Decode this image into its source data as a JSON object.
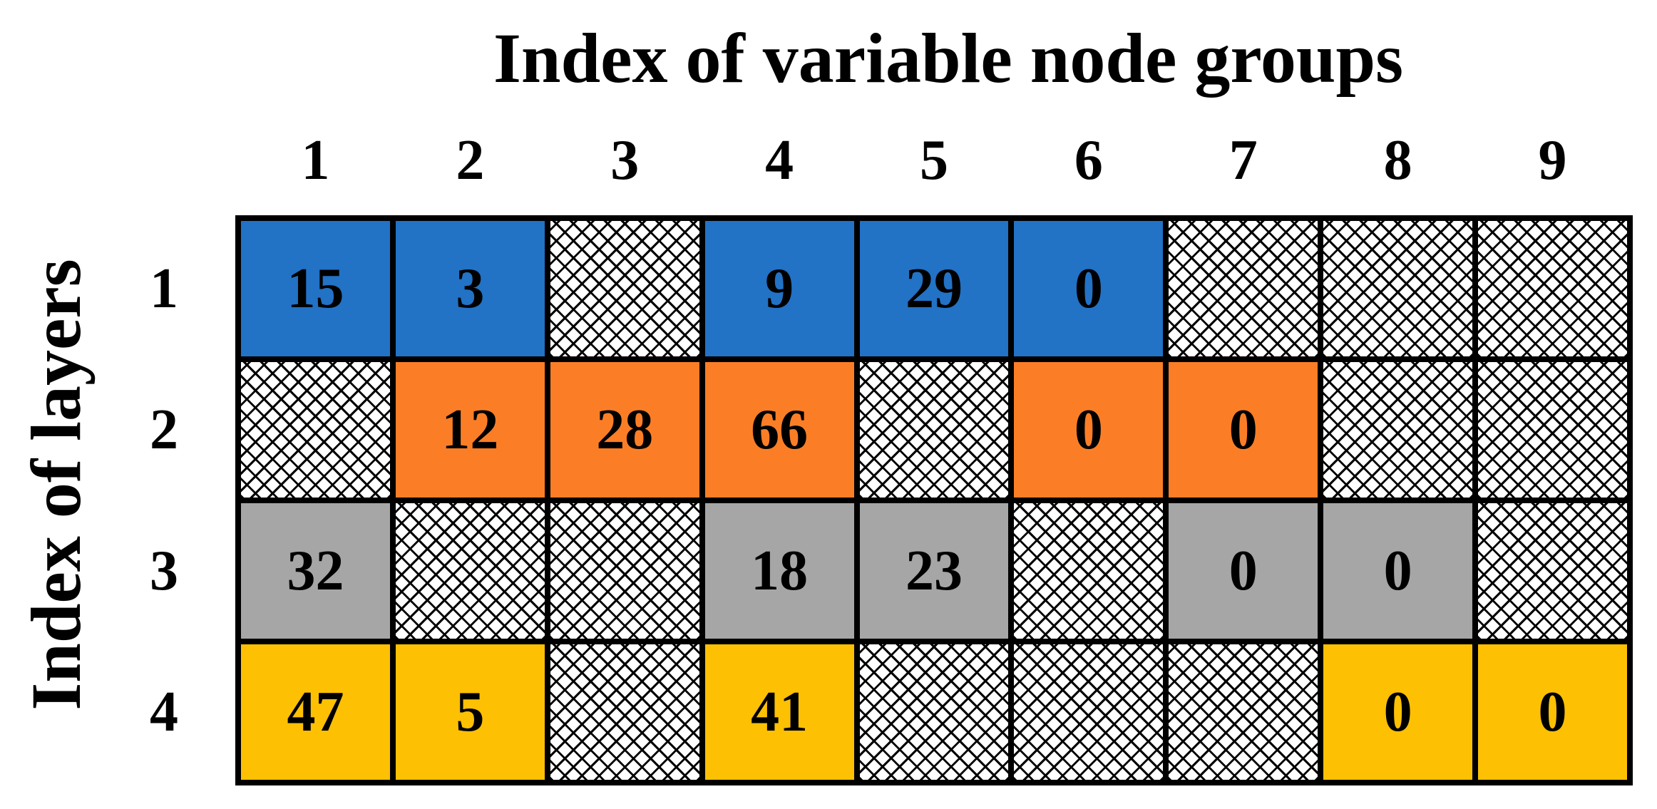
{
  "x_title": "Index of variable node groups",
  "y_title": "Index of layers",
  "columns": [
    "1",
    "2",
    "3",
    "4",
    "5",
    "6",
    "7",
    "8",
    "9"
  ],
  "rows": [
    {
      "label": "1",
      "color": "#2272C6",
      "cells": [
        "15",
        "3",
        null,
        "9",
        "29",
        "0",
        null,
        null,
        null
      ]
    },
    {
      "label": "2",
      "color": "#FB7E26",
      "cells": [
        null,
        "12",
        "28",
        "66",
        null,
        "0",
        "0",
        null,
        null
      ]
    },
    {
      "label": "3",
      "color": "#A6A6A6",
      "cells": [
        "32",
        null,
        null,
        "18",
        "23",
        null,
        "0",
        "0",
        null
      ]
    },
    {
      "label": "4",
      "color": "#FDC003",
      "cells": [
        "47",
        "5",
        null,
        "41",
        null,
        null,
        null,
        "0",
        "0"
      ]
    }
  ],
  "empty_cell_pattern": "crosshatch"
}
